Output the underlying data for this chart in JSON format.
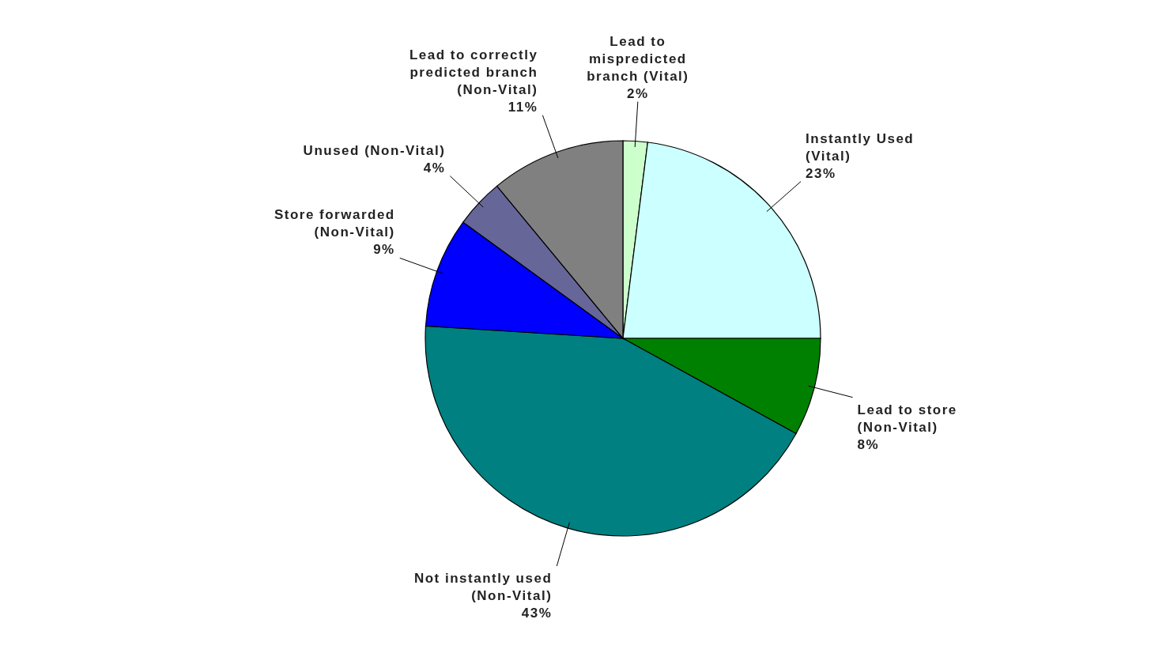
{
  "chart_data": {
    "type": "pie",
    "categories": [
      "Lead to mispredicted branch (Vital)",
      "Instantly Used (Vital)",
      "Lead to store (Non-Vital)",
      "Not instantly used (Non-Vital)",
      "Store forwarded (Non-Vital)",
      "Unused (Non-Vital)",
      "Lead to correctly predicted branch (Non-Vital)"
    ],
    "values": [
      2,
      23,
      8,
      43,
      9,
      4,
      11
    ],
    "colors": [
      "#ccffcc",
      "#ccffff",
      "#008000",
      "#008080",
      "#0000ff",
      "#666699",
      "#808080"
    ],
    "value_labels": [
      "2%",
      "23%",
      "8%",
      "43%",
      "9%",
      "4%",
      "11%"
    ]
  }
}
